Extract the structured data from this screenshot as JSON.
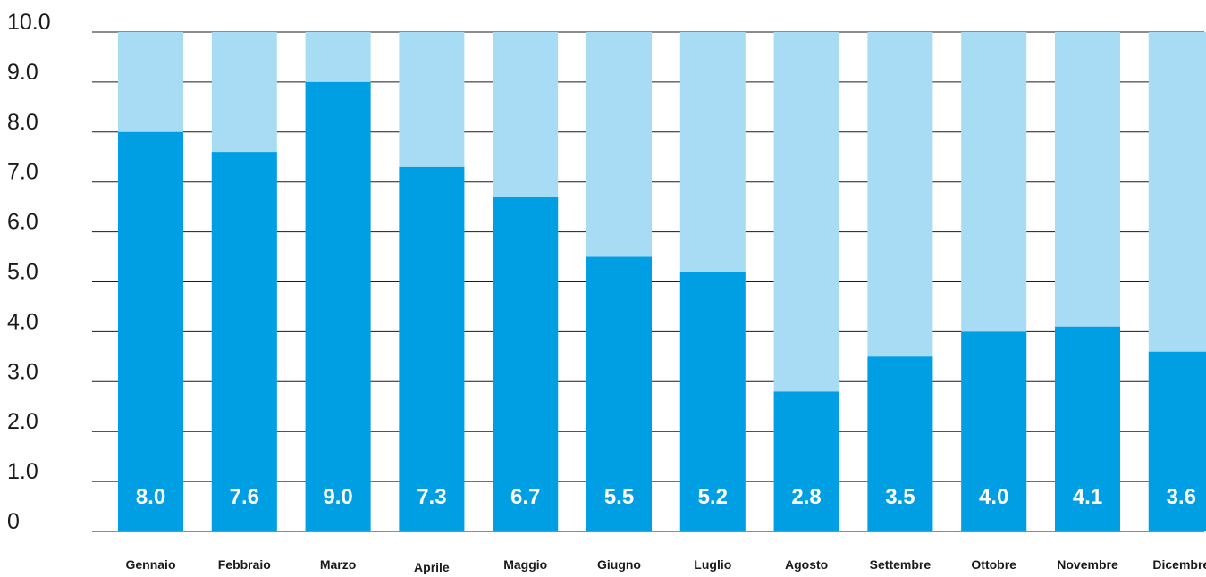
{
  "chart_data": {
    "type": "bar",
    "title": "",
    "xlabel": "",
    "ylabel": "",
    "ylim": [
      0,
      10
    ],
    "yticks": [
      "0",
      "1.0",
      "2.0",
      "3.0",
      "4.0",
      "5.0",
      "6.0",
      "7.0",
      "8.0",
      "9.0",
      "10.0"
    ],
    "grid": true,
    "legend": "none",
    "categories": [
      "Gennaio",
      "Febbraio",
      "Marzo",
      "Aprile",
      "Maggio",
      "Giugno",
      "Luglio",
      "Agosto",
      "Settembre",
      "Ottobre",
      "Novembre",
      "Dicembre"
    ],
    "values": [
      8.0,
      7.6,
      9.0,
      7.3,
      6.7,
      5.5,
      5.2,
      2.8,
      3.5,
      4.0,
      4.1,
      3.6
    ],
    "value_labels": [
      "8.0",
      "7.6",
      "9.0",
      "7.3",
      "6.7",
      "5.5",
      "5.2",
      "2.8",
      "3.5",
      "4.0",
      "4.1",
      "3.6"
    ],
    "background_value": 10,
    "colors": {
      "bar": "#009fe3",
      "background_bar": "#a8dcf5",
      "gridline": "#1a1a1a",
      "label_text": "#ffffff"
    }
  }
}
